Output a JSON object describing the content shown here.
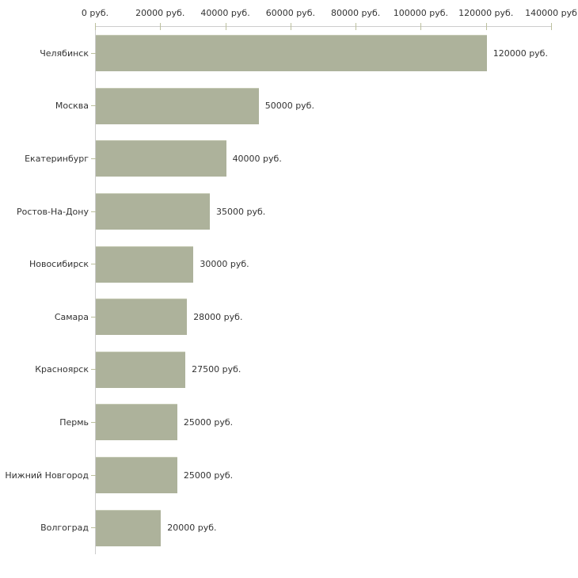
{
  "chart_data": {
    "type": "bar",
    "orientation": "horizontal",
    "title": "",
    "xlabel": "",
    "ylabel": "",
    "unit": "руб.",
    "categories": [
      "Челябинск",
      "Москва",
      "Екатеринбург",
      "Ростов-На-Дону",
      "Новосибирск",
      "Самара",
      "Красноярск",
      "Пермь",
      "Нижний Новгород",
      "Волгоград"
    ],
    "values": [
      120000,
      50000,
      40000,
      35000,
      30000,
      28000,
      27500,
      25000,
      25000,
      20000
    ],
    "value_labels": [
      "120000 руб.",
      "50000 руб.",
      "40000 руб.",
      "35000 руб.",
      "30000 руб.",
      "28000 руб.",
      "27500 руб.",
      "25000 руб.",
      "25000 руб.",
      "20000 руб."
    ],
    "xlim": [
      0,
      140000
    ],
    "x_ticks": [
      0,
      20000,
      40000,
      60000,
      80000,
      100000,
      120000,
      140000
    ],
    "x_tick_labels": [
      "0 руб.",
      "20000 руб.",
      "40000 руб.",
      "60000 руб.",
      "80000 руб.",
      "100000 руб.",
      "120000 руб.",
      "140000 руб"
    ],
    "grid": false,
    "legend": null,
    "colors": {
      "bar": "#adb29b",
      "bar_edge_top": "#c6cab5",
      "axis_line": "#cdcdcd",
      "tick_mark": "#bcc09e",
      "text": "#333333",
      "background": "#ffffff"
    }
  }
}
